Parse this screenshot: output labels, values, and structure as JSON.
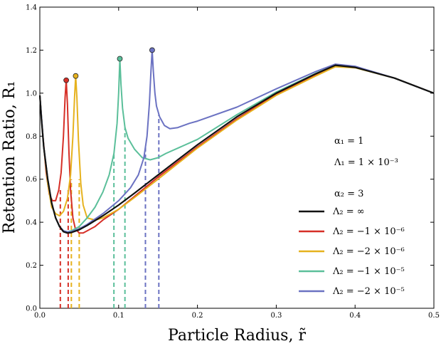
{
  "chart_data": {
    "type": "line",
    "title": "",
    "xlabel": "Particle Radius, r̃",
    "ylabel": "Retention Ratio, R₁",
    "xlim": [
      0.0,
      0.5
    ],
    "ylim": [
      0.0,
      1.4
    ],
    "xticks": [
      "0.0",
      "0.1",
      "0.2",
      "0.3",
      "0.4",
      "0.5"
    ],
    "yticks": [
      "0.0",
      "0.2",
      "0.4",
      "0.6",
      "0.8",
      "1.0",
      "1.2",
      "1.4"
    ],
    "grid": false,
    "legend_position": "lower-right",
    "annotations": [
      "α₁ = 1",
      "Λ₁ = 1 × 10⁻³",
      "α₂ = 3"
    ],
    "series": [
      {
        "name": "Λ₂ = ∞",
        "color": "#111111",
        "style": "solid",
        "points": [
          [
            0.0,
            0.99
          ],
          [
            0.002,
            0.88
          ],
          [
            0.005,
            0.75
          ],
          [
            0.01,
            0.6
          ],
          [
            0.015,
            0.49
          ],
          [
            0.02,
            0.42
          ],
          [
            0.025,
            0.38
          ],
          [
            0.03,
            0.356
          ],
          [
            0.035,
            0.35
          ],
          [
            0.04,
            0.352
          ],
          [
            0.05,
            0.365
          ],
          [
            0.06,
            0.385
          ],
          [
            0.08,
            0.43
          ],
          [
            0.1,
            0.48
          ],
          [
            0.12,
            0.535
          ],
          [
            0.15,
            0.62
          ],
          [
            0.2,
            0.76
          ],
          [
            0.25,
            0.89
          ],
          [
            0.3,
            1.0
          ],
          [
            0.35,
            1.09
          ],
          [
            0.375,
            1.13
          ],
          [
            0.4,
            1.12
          ],
          [
            0.45,
            1.07
          ],
          [
            0.5,
            1.0
          ]
        ]
      },
      {
        "name": "Λ₂ = −1 × 10⁻⁶",
        "color": "#d62f27",
        "style": "solid",
        "peak": [
          0.0335,
          1.06
        ],
        "points": [
          [
            0.0,
            0.99
          ],
          [
            0.004,
            0.8
          ],
          [
            0.008,
            0.63
          ],
          [
            0.012,
            0.53
          ],
          [
            0.016,
            0.5
          ],
          [
            0.02,
            0.5
          ],
          [
            0.024,
            0.55
          ],
          [
            0.027,
            0.63
          ],
          [
            0.03,
            0.8
          ],
          [
            0.032,
            0.98
          ],
          [
            0.0335,
            1.06
          ],
          [
            0.035,
            0.95
          ],
          [
            0.037,
            0.72
          ],
          [
            0.039,
            0.55
          ],
          [
            0.042,
            0.42
          ],
          [
            0.045,
            0.37
          ],
          [
            0.05,
            0.35
          ],
          [
            0.055,
            0.35
          ],
          [
            0.06,
            0.36
          ],
          [
            0.07,
            0.38
          ],
          [
            0.08,
            0.41
          ],
          [
            0.1,
            0.46
          ],
          [
            0.12,
            0.52
          ],
          [
            0.15,
            0.61
          ],
          [
            0.2,
            0.75
          ],
          [
            0.25,
            0.88
          ],
          [
            0.3,
            0.995
          ],
          [
            0.35,
            1.085
          ],
          [
            0.375,
            1.127
          ],
          [
            0.4,
            1.12
          ],
          [
            0.45,
            1.07
          ],
          [
            0.5,
            1.0
          ]
        ]
      },
      {
        "name": "Λ₂ = −2 × 10⁻⁶",
        "color": "#e6b21e",
        "style": "solid",
        "peak": [
          0.0455,
          1.08
        ],
        "points": [
          [
            0.0,
            0.99
          ],
          [
            0.005,
            0.75
          ],
          [
            0.01,
            0.58
          ],
          [
            0.015,
            0.47
          ],
          [
            0.02,
            0.44
          ],
          [
            0.025,
            0.43
          ],
          [
            0.03,
            0.45
          ],
          [
            0.035,
            0.51
          ],
          [
            0.039,
            0.62
          ],
          [
            0.042,
            0.8
          ],
          [
            0.044,
            0.98
          ],
          [
            0.0455,
            1.08
          ],
          [
            0.047,
            0.98
          ],
          [
            0.049,
            0.78
          ],
          [
            0.052,
            0.58
          ],
          [
            0.055,
            0.48
          ],
          [
            0.06,
            0.42
          ],
          [
            0.07,
            0.41
          ],
          [
            0.08,
            0.42
          ],
          [
            0.1,
            0.46
          ],
          [
            0.12,
            0.515
          ],
          [
            0.15,
            0.6
          ],
          [
            0.2,
            0.745
          ],
          [
            0.25,
            0.875
          ],
          [
            0.3,
            0.99
          ],
          [
            0.35,
            1.08
          ],
          [
            0.375,
            1.123
          ],
          [
            0.4,
            1.118
          ],
          [
            0.45,
            1.07
          ],
          [
            0.5,
            1.0
          ]
        ]
      },
      {
        "name": "Λ₂ = −1 × 10⁻⁵",
        "color": "#5bbf9a",
        "style": "solid",
        "peak": [
          0.1015,
          1.16
        ],
        "points": [
          [
            0.0,
            0.99
          ],
          [
            0.005,
            0.75
          ],
          [
            0.01,
            0.6
          ],
          [
            0.015,
            0.49
          ],
          [
            0.02,
            0.42
          ],
          [
            0.025,
            0.38
          ],
          [
            0.03,
            0.36
          ],
          [
            0.035,
            0.355
          ],
          [
            0.04,
            0.36
          ],
          [
            0.05,
            0.38
          ],
          [
            0.06,
            0.42
          ],
          [
            0.07,
            0.47
          ],
          [
            0.08,
            0.54
          ],
          [
            0.088,
            0.62
          ],
          [
            0.094,
            0.72
          ],
          [
            0.098,
            0.86
          ],
          [
            0.1,
            1.0
          ],
          [
            0.1015,
            1.16
          ],
          [
            0.103,
            1.04
          ],
          [
            0.105,
            0.93
          ],
          [
            0.108,
            0.84
          ],
          [
            0.112,
            0.79
          ],
          [
            0.12,
            0.74
          ],
          [
            0.13,
            0.7
          ],
          [
            0.14,
            0.69
          ],
          [
            0.15,
            0.7
          ],
          [
            0.16,
            0.72
          ],
          [
            0.2,
            0.785
          ],
          [
            0.25,
            0.9
          ],
          [
            0.3,
            1.005
          ],
          [
            0.35,
            1.092
          ],
          [
            0.375,
            1.13
          ],
          [
            0.4,
            1.12
          ],
          [
            0.45,
            1.07
          ],
          [
            0.5,
            1.0
          ]
        ]
      },
      {
        "name": "Λ₂ = −2 × 10⁻⁵",
        "color": "#6b72c2",
        "style": "solid",
        "peak": [
          0.1425,
          1.2
        ],
        "points": [
          [
            0.0,
            0.99
          ],
          [
            0.005,
            0.75
          ],
          [
            0.01,
            0.6
          ],
          [
            0.015,
            0.49
          ],
          [
            0.02,
            0.42
          ],
          [
            0.025,
            0.38
          ],
          [
            0.03,
            0.36
          ],
          [
            0.035,
            0.355
          ],
          [
            0.04,
            0.356
          ],
          [
            0.05,
            0.37
          ],
          [
            0.06,
            0.39
          ],
          [
            0.08,
            0.44
          ],
          [
            0.1,
            0.5
          ],
          [
            0.115,
            0.56
          ],
          [
            0.125,
            0.62
          ],
          [
            0.132,
            0.7
          ],
          [
            0.136,
            0.8
          ],
          [
            0.139,
            0.95
          ],
          [
            0.141,
            1.1
          ],
          [
            0.1425,
            1.2
          ],
          [
            0.144,
            1.1
          ],
          [
            0.146,
            1.0
          ],
          [
            0.148,
            0.94
          ],
          [
            0.152,
            0.89
          ],
          [
            0.158,
            0.85
          ],
          [
            0.165,
            0.835
          ],
          [
            0.175,
            0.84
          ],
          [
            0.19,
            0.86
          ],
          [
            0.2,
            0.87
          ],
          [
            0.25,
            0.935
          ],
          [
            0.3,
            1.02
          ],
          [
            0.35,
            1.1
          ],
          [
            0.375,
            1.135
          ],
          [
            0.4,
            1.125
          ],
          [
            0.45,
            1.07
          ],
          [
            0.5,
            1.0
          ]
        ]
      }
    ],
    "dashed_lines": [
      {
        "color": "#d62f27",
        "x": 0.026,
        "y_top": 0.55
      },
      {
        "color": "#d62f27",
        "x": 0.036,
        "y_top": 0.55
      },
      {
        "color": "#e6b21e",
        "x": 0.04,
        "y_top": 0.6
      },
      {
        "color": "#e6b21e",
        "x": 0.05,
        "y_top": 0.6
      },
      {
        "color": "#5bbf9a",
        "x": 0.094,
        "y_top": 0.72
      },
      {
        "color": "#5bbf9a",
        "x": 0.108,
        "y_top": 0.84
      },
      {
        "color": "#6b72c2",
        "x": 0.134,
        "y_top": 0.76
      },
      {
        "color": "#6b72c2",
        "x": 0.151,
        "y_top": 0.9
      }
    ]
  }
}
